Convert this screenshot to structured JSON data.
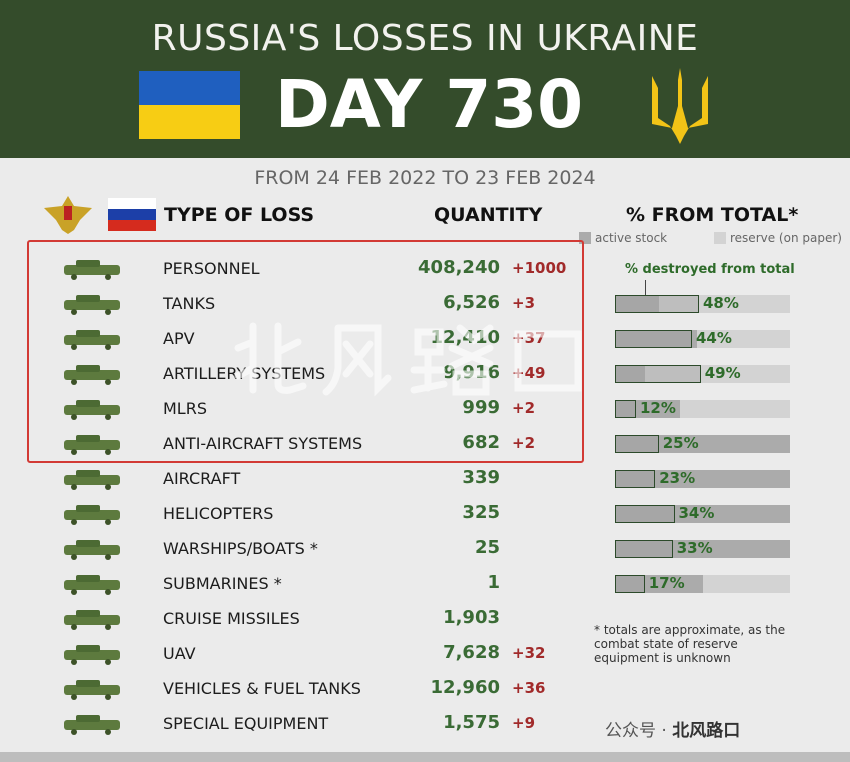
{
  "header": {
    "title": "RUSSIA'S LOSSES IN UKRAINE",
    "day": "DAY 730",
    "colors": {
      "background": "#344c2b",
      "ua_blue": "#1f5fbf",
      "ua_yellow": "#f7cd14"
    }
  },
  "subtitle": "FROM 24 FEB 2022 TO 23 FEB 2024",
  "columns": {
    "type": "TYPE OF LOSS",
    "quantity": "QUANTITY",
    "percent": "% FROM TOTAL*"
  },
  "legend": {
    "active": "active stock",
    "reserve": "reserve (on paper)",
    "destroyed": "% destroyed from total"
  },
  "rows": [
    {
      "name": "PERSONNEL",
      "qty": "408,240",
      "delta": "+1000",
      "icon": "soldiers-icon",
      "highlight": true
    },
    {
      "name": "TANKS",
      "qty": "6,526",
      "delta": "+3",
      "icon": "tank-icon",
      "highlight": true,
      "pct": "48%",
      "destroyed": 0.48,
      "active": 0.25
    },
    {
      "name": "APV",
      "qty": "12,410",
      "delta": "+37",
      "icon": "apv-icon",
      "highlight": true,
      "pct": "44%",
      "destroyed": 0.44,
      "active": 0.47
    },
    {
      "name": "ARTILLERY SYSTEMS",
      "qty": "9,916",
      "delta": "+49",
      "icon": "artillery-icon",
      "highlight": true,
      "pct": "49%",
      "destroyed": 0.49,
      "active": 0.17
    },
    {
      "name": "MLRS",
      "qty": "999",
      "delta": "+2",
      "icon": "mlrs-icon",
      "highlight": true,
      "pct": "12%",
      "destroyed": 0.12,
      "active": 0.37
    },
    {
      "name": "ANTI-AIRCRAFT SYSTEMS",
      "qty": "682",
      "delta": "+2",
      "icon": "anti-aircraft-icon",
      "highlight": true,
      "pct": "25%",
      "destroyed": 0.25,
      "active": 1
    },
    {
      "name": "AIRCRAFT",
      "qty": "339",
      "delta": "",
      "icon": "aircraft-icon",
      "pct": "23%",
      "destroyed": 0.23,
      "active": 1
    },
    {
      "name": "HELICOPTERS",
      "qty": "325",
      "delta": "",
      "icon": "helicopter-icon",
      "pct": "34%",
      "destroyed": 0.34,
      "active": 1
    },
    {
      "name": "WARSHIPS/BOATS *",
      "qty": "25",
      "delta": "",
      "icon": "warship-icon",
      "pct": "33%",
      "destroyed": 0.33,
      "active": 1
    },
    {
      "name": "SUBMARINES *",
      "qty": "1",
      "delta": "",
      "icon": "submarine-icon",
      "pct": "17%",
      "destroyed": 0.17,
      "active": 0.5
    },
    {
      "name": "CRUISE MISSILES",
      "qty": "1,903",
      "delta": "",
      "icon": "missile-icon"
    },
    {
      "name": "UAV",
      "qty": "7,628",
      "delta": "+32",
      "icon": "uav-icon"
    },
    {
      "name": "VEHICLES & FUEL TANKS",
      "qty": "12,960",
      "delta": "+36",
      "icon": "truck-icon"
    },
    {
      "name": "SPECIAL EQUIPMENT",
      "qty": "1,575",
      "delta": "+9",
      "icon": "special-equipment-icon"
    }
  ],
  "note": "* totals are approximate, as the combat state of reserve equipment is unknown",
  "watermark": "北风路口",
  "footer": {
    "label": "公众号 ·",
    "name": "北风路口"
  }
}
